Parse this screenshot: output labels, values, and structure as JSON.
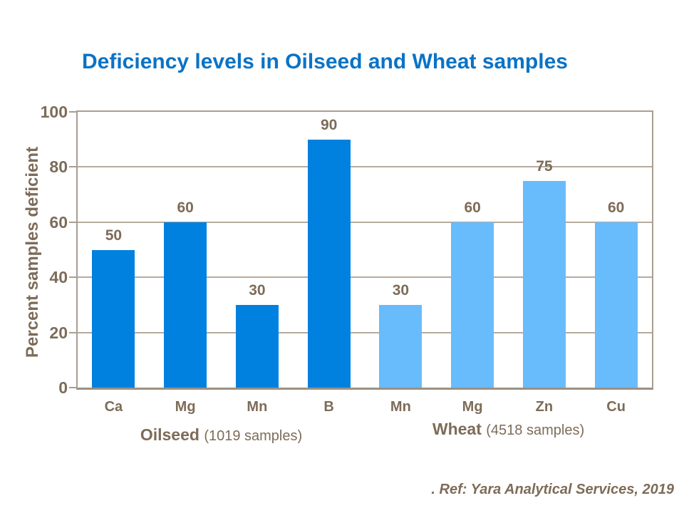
{
  "slide": {
    "title": "Deficiency levels in Oilseed and Wheat samples",
    "footer": ". Ref: Yara Analytical Services, 2019"
  },
  "chart_data": {
    "type": "bar",
    "title": "Deficiency levels in Oilseed and Wheat samples",
    "xlabel": "",
    "ylabel": "Percent samples deficient",
    "ylim": [
      0,
      100
    ],
    "yticks": [
      0,
      20,
      40,
      60,
      80,
      100
    ],
    "grid": true,
    "legend_position": "none",
    "categories": [
      "Ca",
      "Mg",
      "Mn",
      "B",
      "Mn",
      "Mg",
      "Zn",
      "Cu"
    ],
    "values": [
      50,
      60,
      30,
      90,
      30,
      60,
      75,
      60
    ],
    "bar_colors": [
      "#0081E0",
      "#0081E0",
      "#0081E0",
      "#0081E0",
      "#68BCFB",
      "#68BCFB",
      "#68BCFB",
      "#68BCFB"
    ],
    "groups": [
      {
        "name": "Oilseed",
        "note": "(1019 samples)",
        "color": "#0081E0",
        "span": [
          0,
          3
        ]
      },
      {
        "name": "Wheat",
        "note": "(4518 samples)",
        "color": "#68BCFB",
        "span": [
          4,
          7
        ]
      }
    ]
  },
  "colors": {
    "title_blue": "#0A73C6",
    "oilseed_blue": "#0081E0",
    "wheat_blue": "#68BCFB",
    "axis_text_brown": "#7D6C58",
    "gridline_tan": "#B5AB9D",
    "frame_tan": "#A89E91"
  }
}
